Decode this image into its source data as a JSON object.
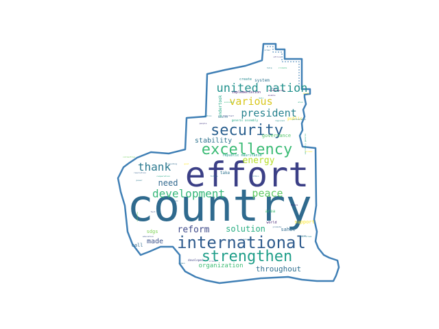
{
  "words": [
    {
      "text": "country",
      "color": "#2f6a8e"
    },
    {
      "text": "effort",
      "color": "#3b3f86"
    },
    {
      "text": "international",
      "color": "#2f5b8d"
    },
    {
      "text": "strengthen",
      "color": "#1f9e89"
    },
    {
      "text": "excellency",
      "color": "#3bbb75"
    },
    {
      "text": "security",
      "color": "#2a5f8e"
    },
    {
      "text": "united nation",
      "color": "#21918c"
    },
    {
      "text": "development",
      "color": "#35b779"
    },
    {
      "text": "president",
      "color": "#26828e"
    },
    {
      "text": "various",
      "color": "#d8c61a"
    },
    {
      "text": "thank",
      "color": "#2a788e"
    },
    {
      "text": "peace",
      "color": "#5ec962"
    },
    {
      "text": "reform",
      "color": "#3e4989"
    },
    {
      "text": "solution",
      "color": "#27ad81"
    },
    {
      "text": "energy",
      "color": "#b5de2b"
    },
    {
      "text": "need",
      "color": "#31688e"
    },
    {
      "text": "stability",
      "color": "#2c728e"
    },
    {
      "text": "throughout",
      "color": "#2e6e8e"
    },
    {
      "text": "organization",
      "color": "#3dbc74"
    },
    {
      "text": "made",
      "color": "#3b528b"
    },
    {
      "text": "governance",
      "color": "#52c569"
    },
    {
      "text": "republic mauritanie",
      "color": "#1f9a8a"
    },
    {
      "text": "system",
      "color": "#2c728e"
    },
    {
      "text": "create",
      "color": "#23888e"
    },
    {
      "text": "implementation",
      "color": "#482475"
    },
    {
      "text": "undertook",
      "color": "#22a884"
    },
    {
      "text": "sdgs",
      "color": "#7ad151"
    },
    {
      "text": "take",
      "color": "#2c728e"
    },
    {
      "text": "area",
      "color": "#3dbc74"
    },
    {
      "text": "sahel",
      "color": "#2f6a8e"
    },
    {
      "text": "support",
      "color": "#fde725"
    },
    {
      "text": "call",
      "color": "#31688e"
    },
    {
      "text": "world",
      "color": "#482878"
    },
    {
      "text": "public",
      "color": "#fde725"
    },
    {
      "text": "general assembly",
      "color": "#22a884"
    },
    {
      "text": "health",
      "color": "#2c728e"
    },
    {
      "text": "strengthening",
      "color": "#440154"
    },
    {
      "text": "regional",
      "color": "#21918c"
    },
    {
      "text": "partnership",
      "color": "#2a788e"
    },
    {
      "text": "program",
      "color": "#31688e"
    },
    {
      "text": "developed",
      "color": "#414487"
    },
    {
      "text": "cooperation",
      "color": "#22a884"
    },
    {
      "text": "resolution",
      "color": "#355f8d"
    },
    {
      "text": "collective",
      "color": "#6ece58"
    },
    {
      "text": "help",
      "color": "#26828e"
    },
    {
      "text": "africa",
      "color": "#443a83"
    },
    {
      "text": "climate",
      "color": "#35b779"
    },
    {
      "text": "enable",
      "color": "#482677"
    },
    {
      "text": "power",
      "color": "#2a788e"
    },
    {
      "text": "fact",
      "color": "#3b528b"
    },
    {
      "text": "goal",
      "color": "#fde725"
    },
    {
      "text": "region",
      "color": "#31688e"
    },
    {
      "text": "mali",
      "color": "#1f9e89"
    },
    {
      "text": "important",
      "color": "#3e4989"
    },
    {
      "text": "terrorism",
      "color": "#26828e"
    },
    {
      "text": "including",
      "color": "#2f6a8e"
    },
    {
      "text": "within",
      "color": "#2c728e"
    },
    {
      "text": "access",
      "color": "#fde725"
    },
    {
      "text": "violence",
      "color": "#6ece58"
    },
    {
      "text": "education",
      "color": "#3b528b"
    },
    {
      "text": "thanks",
      "color": "#472d7b"
    },
    {
      "text": "secretary general",
      "color": "#22a884"
    },
    {
      "text": "poverty",
      "color": "#2c728e"
    },
    {
      "text": "crisis",
      "color": "#414487"
    },
    {
      "text": "promote",
      "color": "#31688e"
    },
    {
      "text": "future",
      "color": "#2a788e"
    },
    {
      "text": "economic",
      "color": "#35b779"
    },
    {
      "text": "action",
      "color": "#26828e"
    },
    {
      "text": "state",
      "color": "#3b528b"
    },
    {
      "text": "young",
      "color": "#fde725"
    },
    {
      "text": "order",
      "color": "#2f6a8e"
    },
    {
      "text": "also",
      "color": "#22a884"
    },
    {
      "text": "people",
      "color": "#443983"
    },
    {
      "text": "women",
      "color": "#2c728e"
    }
  ]
}
